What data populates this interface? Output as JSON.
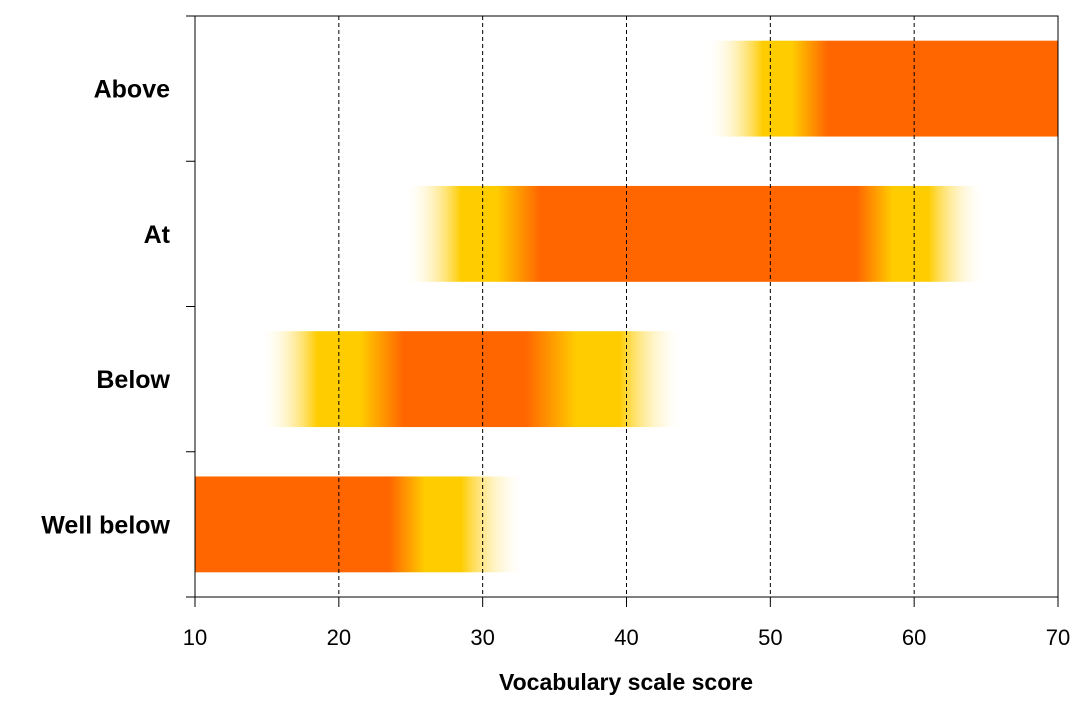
{
  "chart_data": {
    "type": "bar",
    "subtype": "horizontal-range-gradient",
    "title": "",
    "xlabel": "Vocabulary scale score",
    "ylabel": "",
    "xlim": [
      10,
      70
    ],
    "xticks": [
      10,
      20,
      30,
      40,
      50,
      60,
      70
    ],
    "grid": "vertical-dashed",
    "categories": [
      "Well below",
      "Below",
      "At",
      "Above"
    ],
    "bars": [
      {
        "category": "Well below",
        "start": 10,
        "end": 33,
        "gradient": [
          {
            "x": 10,
            "color": "#FF6600",
            "opacity": 1
          },
          {
            "x": 23.5,
            "color": "#FF6600",
            "opacity": 1
          },
          {
            "x": 26,
            "color": "#FFCC00",
            "opacity": 1
          },
          {
            "x": 28.5,
            "color": "#FFCC00",
            "opacity": 1
          },
          {
            "x": 33,
            "color": "#FFFFFF",
            "opacity": 0
          }
        ]
      },
      {
        "category": "Below",
        "start": 14.5,
        "end": 44,
        "gradient": [
          {
            "x": 14.5,
            "color": "#FFFFFF",
            "opacity": 0
          },
          {
            "x": 18.5,
            "color": "#FFCC00",
            "opacity": 1
          },
          {
            "x": 21.5,
            "color": "#FFCC00",
            "opacity": 1
          },
          {
            "x": 24.5,
            "color": "#FF6600",
            "opacity": 1
          },
          {
            "x": 33,
            "color": "#FF6600",
            "opacity": 1
          },
          {
            "x": 36.5,
            "color": "#FFCC00",
            "opacity": 1
          },
          {
            "x": 39.5,
            "color": "#FFCC00",
            "opacity": 1
          },
          {
            "x": 44,
            "color": "#FFFFFF",
            "opacity": 0
          }
        ]
      },
      {
        "category": "At",
        "start": 24.5,
        "end": 65,
        "gradient": [
          {
            "x": 24.5,
            "color": "#FFFFFF",
            "opacity": 0
          },
          {
            "x": 28.5,
            "color": "#FFCC00",
            "opacity": 1
          },
          {
            "x": 31,
            "color": "#FFCC00",
            "opacity": 1
          },
          {
            "x": 34,
            "color": "#FF6600",
            "opacity": 1
          },
          {
            "x": 56,
            "color": "#FF6600",
            "opacity": 1
          },
          {
            "x": 58.5,
            "color": "#FFCC00",
            "opacity": 1
          },
          {
            "x": 61,
            "color": "#FFCC00",
            "opacity": 1
          },
          {
            "x": 65,
            "color": "#FFFFFF",
            "opacity": 0
          }
        ]
      },
      {
        "category": "Above",
        "start": 45.5,
        "end": 70,
        "gradient": [
          {
            "x": 45.5,
            "color": "#FFFFFF",
            "opacity": 0
          },
          {
            "x": 49.5,
            "color": "#FFCC00",
            "opacity": 1
          },
          {
            "x": 51.5,
            "color": "#FFCC00",
            "opacity": 1
          },
          {
            "x": 54,
            "color": "#FF6600",
            "opacity": 1
          },
          {
            "x": 70,
            "color": "#FF6600",
            "opacity": 1
          }
        ]
      }
    ],
    "colors": {
      "core": "#FF6600",
      "transition": "#FFCC00",
      "axis": "#000000",
      "grid": "#000000"
    }
  }
}
